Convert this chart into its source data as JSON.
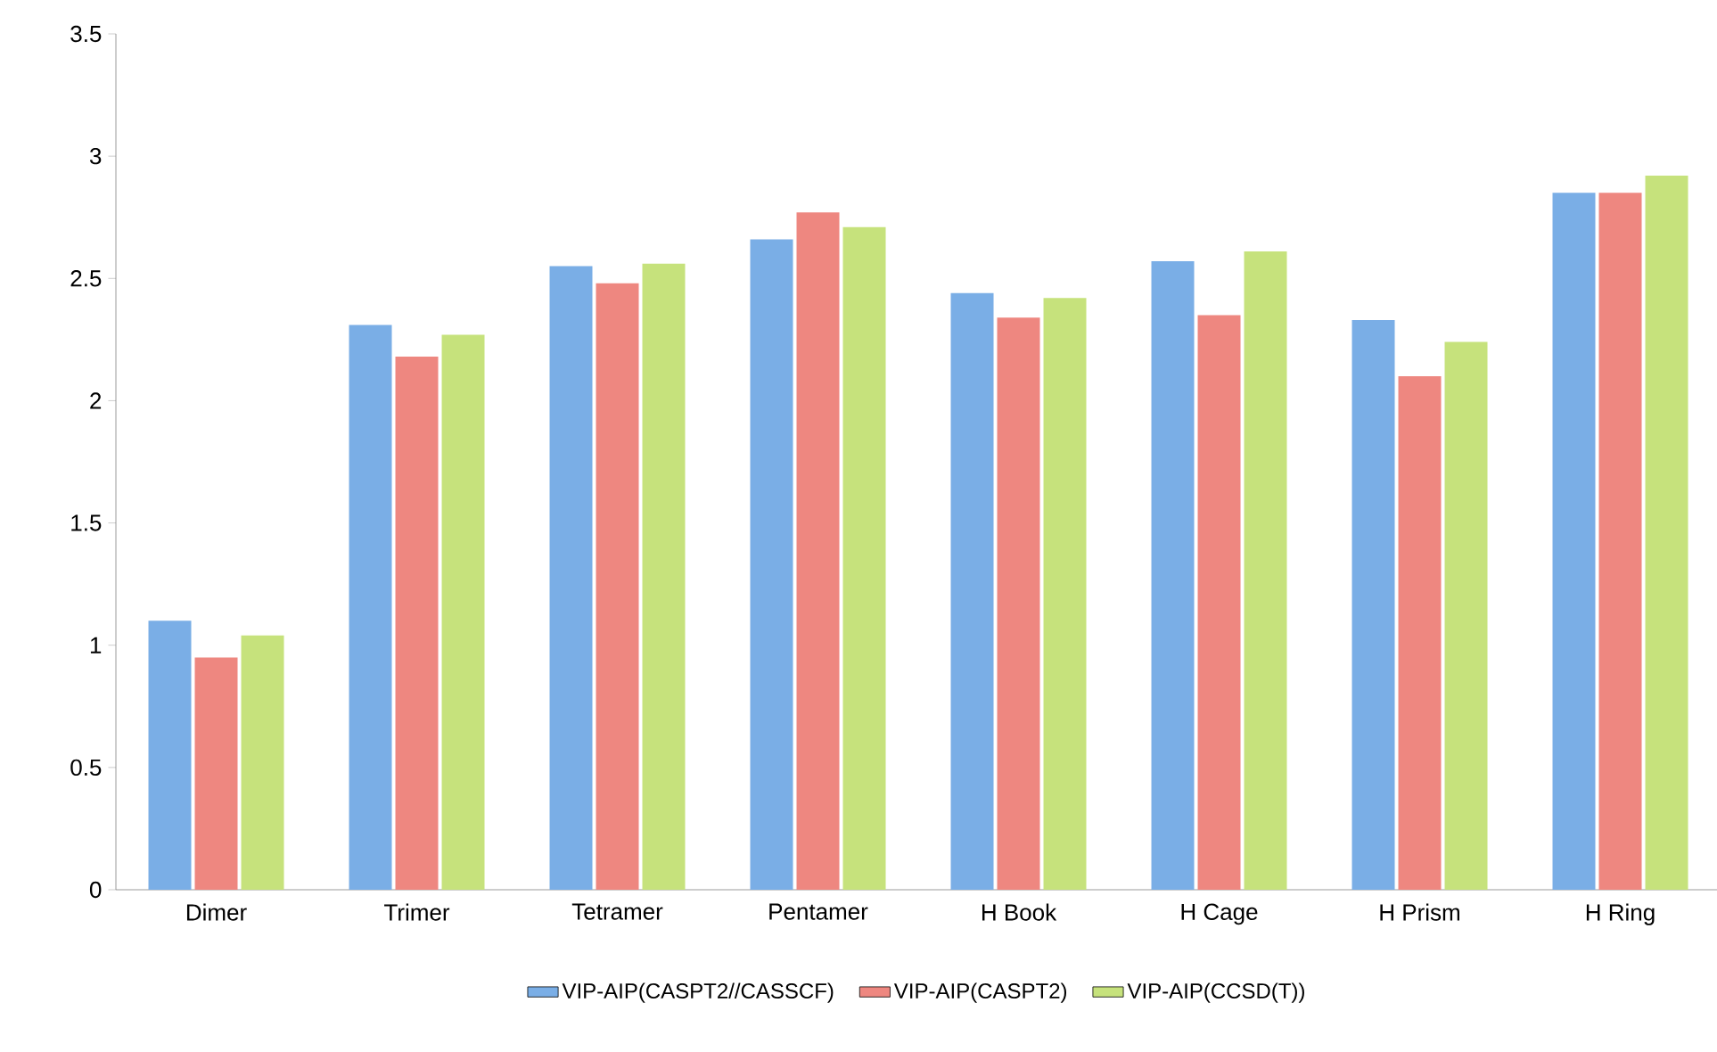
{
  "chart_data": {
    "type": "bar",
    "categories": [
      "Dimer",
      "Trimer",
      "Tetramer",
      "Pentamer",
      "H Book",
      "H Cage",
      "H Prism",
      "H Ring"
    ],
    "series": [
      {
        "name": "VIP-AIP(CASPT2//CASSCF)",
        "color": "#7aaee6",
        "values": [
          1.1,
          2.31,
          2.55,
          2.66,
          2.44,
          2.57,
          2.33,
          2.85
        ]
      },
      {
        "name": "VIP-AIP(CASPT2)",
        "color": "#ee8780",
        "values": [
          0.95,
          2.18,
          2.48,
          2.77,
          2.34,
          2.35,
          2.1,
          2.85
        ]
      },
      {
        "name": "VIP-AIP(CCSD(T))",
        "color": "#c6e27c",
        "values": [
          1.04,
          2.27,
          2.56,
          2.71,
          2.42,
          2.61,
          2.24,
          2.92
        ]
      }
    ],
    "ylim": [
      0,
      3.5
    ],
    "yticks": [
      0,
      0.5,
      1,
      1.5,
      2,
      2.5,
      3,
      3.5
    ],
    "grid": false,
    "legend": "bottom"
  }
}
